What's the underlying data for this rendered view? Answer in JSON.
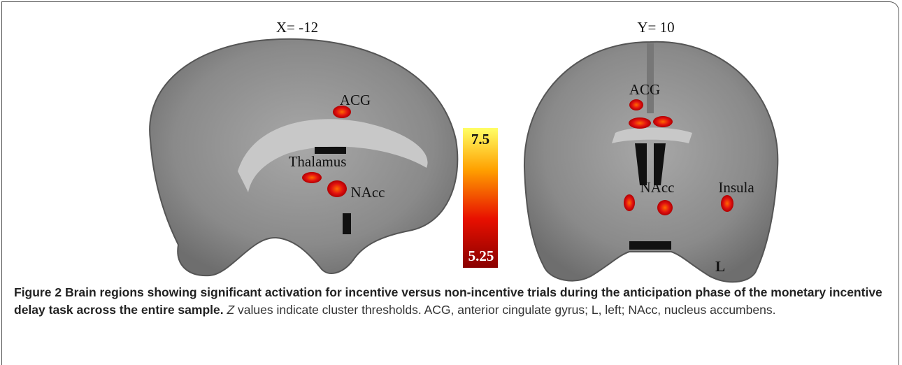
{
  "figure": {
    "panels": [
      {
        "title": "X= -12",
        "labels": [
          "ACG",
          "Thalamus",
          "NAcc"
        ]
      },
      {
        "title": "Y= 10",
        "labels": [
          "ACG",
          "NAcc",
          "Insula",
          "L"
        ]
      }
    ],
    "colorbar": {
      "max_label": "7.5",
      "min_label": "5.25"
    },
    "caption": {
      "label": "Figure 2",
      "title": "Brain regions showing significant activation for incentive versus non-incentive trials during the anticipation phase of the monetary incentive delay task across the entire sample.",
      "italic": "Z",
      "text": "values indicate cluster thresholds. ACG, anterior cingulate gyrus; L, left; NAcc, nucleus accumbens."
    }
  }
}
